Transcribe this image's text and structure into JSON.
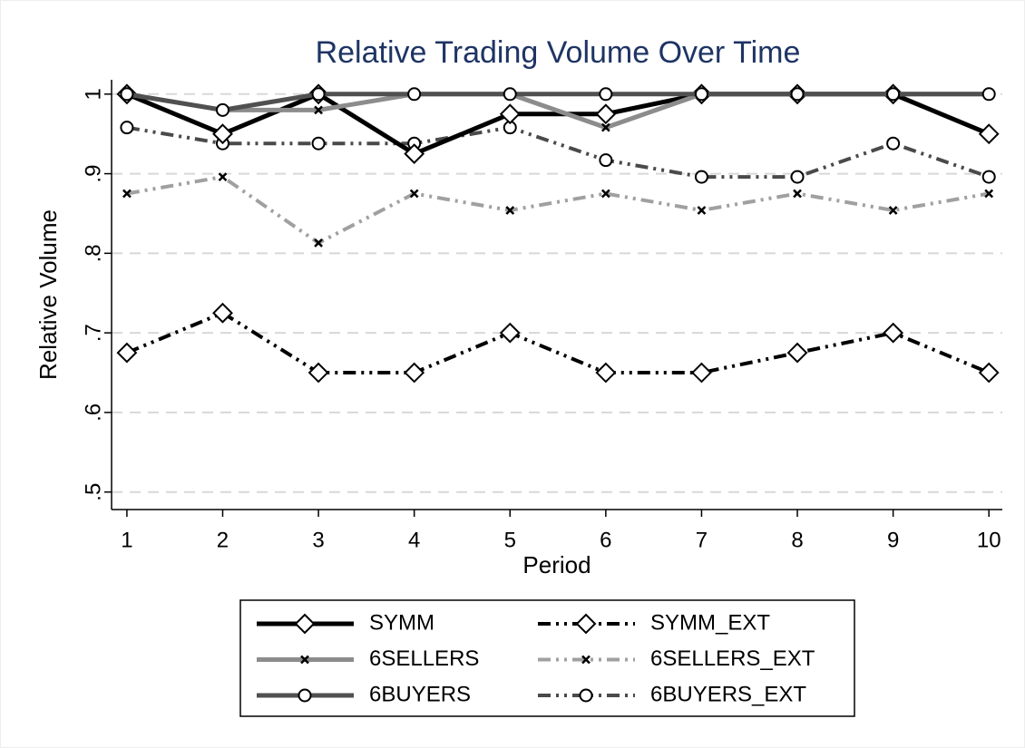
{
  "chart_data": {
    "type": "line",
    "title": "Relative Trading Volume Over Time",
    "xlabel": "Period",
    "ylabel": "Relative Volume",
    "x": [
      1,
      2,
      3,
      4,
      5,
      6,
      7,
      8,
      9,
      10
    ],
    "xlim": [
      0.84,
      10.14
    ],
    "xticks": [
      1,
      2,
      3,
      4,
      5,
      6,
      7,
      8,
      9,
      10
    ],
    "ylim": [
      0.478,
      1.018
    ],
    "yticks": [
      {
        "value": 0.5,
        "label": ".5"
      },
      {
        "value": 0.6,
        "label": ".6"
      },
      {
        "value": 0.7,
        "label": ".7"
      },
      {
        "value": 0.8,
        "label": ".8"
      },
      {
        "value": 0.9,
        "label": ".9"
      },
      1
    ],
    "grid": true,
    "series": [
      {
        "name": "SYMM",
        "color": "#000000",
        "width": 5,
        "dash": "solid",
        "marker": "diamond",
        "values": [
          1,
          0.95,
          1,
          0.925,
          0.975,
          0.975,
          1,
          1,
          1,
          0.95
        ]
      },
      {
        "name": "SYMM_EXT",
        "color": "#000000",
        "width": 4,
        "dash": "dashdot",
        "marker": "diamond",
        "values": [
          0.675,
          0.725,
          0.65,
          0.65,
          0.7,
          0.65,
          0.65,
          0.675,
          0.7,
          0.65
        ]
      },
      {
        "name": "6SELLERS",
        "color": "#8c8c8c",
        "width": 5,
        "dash": "solid",
        "marker": "x",
        "values": [
          1,
          0.98,
          0.98,
          1,
          1,
          0.958,
          1,
          1,
          1,
          1
        ]
      },
      {
        "name": "6SELLERS_EXT",
        "color": "#a0a0a0",
        "width": 4,
        "dash": "dashdot",
        "marker": "x",
        "values": [
          0.875,
          0.896,
          0.813,
          0.875,
          0.854,
          0.875,
          0.854,
          0.875,
          0.854,
          0.875
        ]
      },
      {
        "name": "6BUYERS",
        "color": "#505050",
        "width": 5,
        "dash": "solid",
        "marker": "circle",
        "values": [
          1,
          0.98,
          1,
          1,
          1,
          1,
          1,
          1,
          1,
          1
        ]
      },
      {
        "name": "6BUYERS_EXT",
        "color": "#4a4a4a",
        "width": 4,
        "dash": "dashdot",
        "marker": "circle",
        "values": [
          0.958,
          0.938,
          0.938,
          0.938,
          0.958,
          0.917,
          0.896,
          0.896,
          0.938,
          0.896
        ]
      }
    ]
  }
}
